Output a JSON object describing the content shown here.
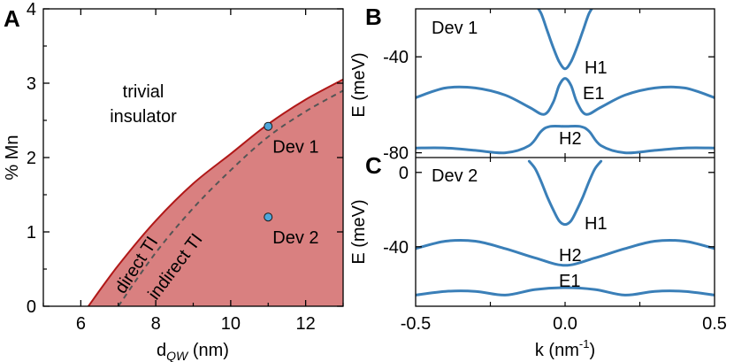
{
  "chart_data": [
    {
      "panel": "A",
      "type": "area",
      "xlabel": "d",
      "xlabel_sub": "QW",
      "xlabel_unit": " (nm)",
      "ylabel": "% Mn",
      "xlim": [
        5,
        13
      ],
      "ylim": [
        0,
        4
      ],
      "xticks": [
        6,
        8,
        10,
        12
      ],
      "yticks": [
        0,
        1,
        2,
        3,
        4
      ],
      "boundary_solid": {
        "x": [
          6.2,
          7,
          8,
          9,
          10,
          11,
          12,
          13
        ],
        "y": [
          0,
          0.55,
          1.15,
          1.65,
          2.05,
          2.45,
          2.78,
          3.05
        ]
      },
      "boundary_dashed": {
        "x": [
          7.0,
          8,
          9,
          10,
          11,
          12,
          13
        ],
        "y": [
          0,
          0.72,
          1.32,
          1.83,
          2.28,
          2.62,
          2.9
        ]
      },
      "points": [
        {
          "label": "Dev 1",
          "x": 11,
          "y": 2.42
        },
        {
          "label": "Dev 2",
          "x": 11,
          "y": 1.2
        }
      ],
      "region_labels": {
        "trivial": [
          "trivial",
          "insulator"
        ],
        "direct": "direct TI",
        "indirect": "indirect TI"
      },
      "colors": {
        "region": "#d98080",
        "boundary": "#b01818",
        "dashed": "#555555",
        "point": "#4fa6da"
      }
    },
    {
      "panel": "B",
      "type": "line",
      "device": "Dev 1",
      "ylabel": "E (meV)",
      "xlim": [
        -0.5,
        0.5
      ],
      "ylim": [
        -82,
        -20
      ],
      "yticks": [
        -40,
        -80
      ],
      "band_labels": [
        "H1",
        "E1",
        "H2"
      ],
      "series": [
        {
          "name": "H1",
          "x": [
            -0.1,
            -0.08,
            -0.06,
            -0.04,
            -0.02,
            0,
            0.02,
            0.04,
            0.06,
            0.08,
            0.1
          ],
          "y": [
            -18,
            -22,
            -29,
            -36,
            -42,
            -45,
            -42,
            -36,
            -29,
            -22,
            -18
          ]
        },
        {
          "name": "E1",
          "x": [
            -0.5,
            -0.4,
            -0.3,
            -0.2,
            -0.12,
            -0.07,
            -0.04,
            -0.02,
            0,
            0.02,
            0.04,
            0.07,
            0.12,
            0.2,
            0.3,
            0.4,
            0.5
          ],
          "y": [
            -57,
            -53,
            -53,
            -56,
            -61,
            -64,
            -59,
            -52,
            -49,
            -52,
            -59,
            -64,
            -61,
            -56,
            -53,
            -53,
            -57
          ]
        },
        {
          "name": "H2",
          "x": [
            -0.5,
            -0.4,
            -0.3,
            -0.2,
            -0.12,
            -0.08,
            -0.05,
            0,
            0.05,
            0.08,
            0.12,
            0.2,
            0.3,
            0.4,
            0.5
          ],
          "y": [
            -78,
            -78,
            -79,
            -80,
            -77,
            -71,
            -69,
            -69,
            -69,
            -71,
            -77,
            -80,
            -79,
            -78,
            -78
          ]
        }
      ],
      "color": "#3a7fb8"
    },
    {
      "panel": "C",
      "type": "line",
      "device": "Dev 2",
      "ylabel": "E (meV)",
      "xlabel": "k (nm",
      "xlabel_sup": "-1",
      "xlabel_end": ")",
      "xlim": [
        -0.5,
        0.5
      ],
      "ylim": [
        -72,
        8
      ],
      "xticks": [
        -0.5,
        0.0,
        0.5
      ],
      "xticklabels": [
        "-0.5",
        "0.0",
        "0.5"
      ],
      "yticks": [
        0,
        -40
      ],
      "band_labels": [
        "H1",
        "H2",
        "E1"
      ],
      "series": [
        {
          "name": "H1",
          "x": [
            -0.12,
            -0.1,
            -0.08,
            -0.06,
            -0.04,
            -0.02,
            0,
            0.02,
            0.04,
            0.06,
            0.08,
            0.1,
            0.12
          ],
          "y": [
            6,
            2,
            -5,
            -13,
            -20,
            -26,
            -28,
            -26,
            -20,
            -13,
            -5,
            2,
            6
          ]
        },
        {
          "name": "H2",
          "x": [
            -0.5,
            -0.4,
            -0.3,
            -0.2,
            -0.1,
            0,
            0.1,
            0.2,
            0.3,
            0.4,
            0.5
          ],
          "y": [
            -41,
            -37,
            -37,
            -41,
            -46,
            -50,
            -46,
            -41,
            -37,
            -37,
            -41
          ]
        },
        {
          "name": "E1",
          "x": [
            -0.5,
            -0.4,
            -0.3,
            -0.2,
            -0.1,
            0,
            0.1,
            0.2,
            0.3,
            0.4,
            0.5
          ],
          "y": [
            -66,
            -64,
            -64,
            -66,
            -63,
            -62,
            -63,
            -66,
            -64,
            -64,
            -66
          ]
        }
      ],
      "color": "#3a7fb8"
    }
  ]
}
